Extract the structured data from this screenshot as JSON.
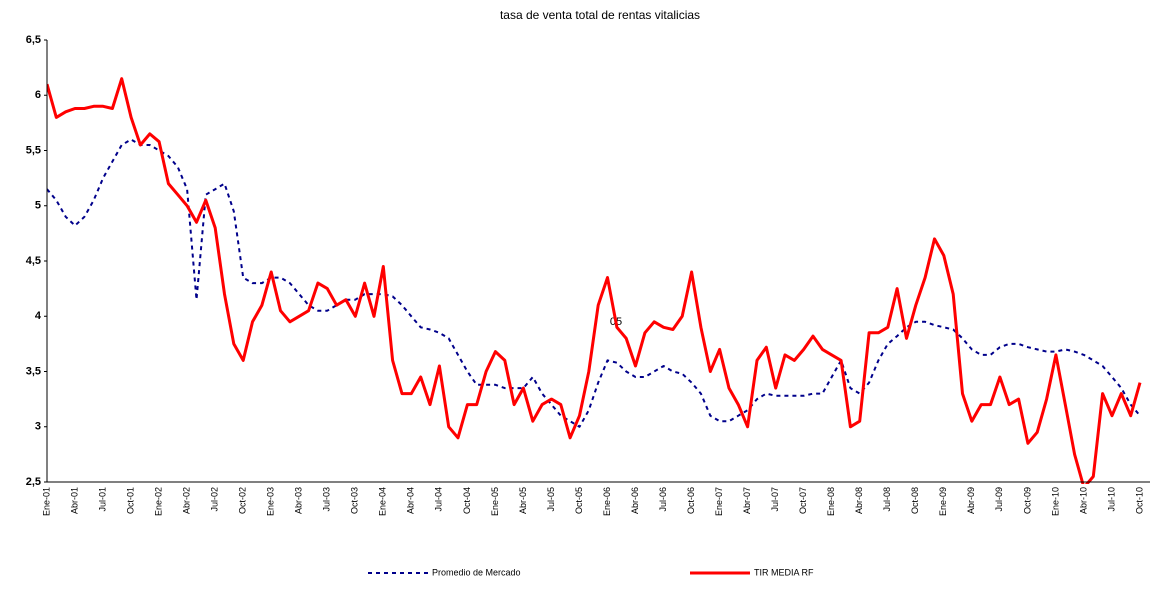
{
  "chart_data": {
    "type": "line",
    "title": "tasa de venta total de rentas vitalicias",
    "annotation": "05",
    "categories": [
      "Ene-01",
      null,
      null,
      "Abr-01",
      null,
      null,
      "Jul-01",
      null,
      null,
      "Oct-01",
      null,
      null,
      "Ene-02",
      null,
      null,
      "Abr-02",
      null,
      null,
      "Jul-02",
      null,
      null,
      "Oct-02",
      null,
      null,
      "Ene-03",
      null,
      null,
      "Abr-03",
      null,
      null,
      "Jul-03",
      null,
      null,
      "Oct-03",
      null,
      null,
      "Ene-04",
      null,
      null,
      "Abr-04",
      null,
      null,
      "Jul-04",
      null,
      null,
      "Oct-04",
      null,
      null,
      "Ene-05",
      null,
      null,
      "Abr-05",
      null,
      null,
      "Jul-05",
      null,
      null,
      "Oct-05",
      null,
      null,
      "Ene-06",
      null,
      null,
      "Abr-06",
      null,
      null,
      "Jul-06",
      null,
      null,
      "Oct-06",
      null,
      null,
      "Ene-07",
      null,
      null,
      "Abr-07",
      null,
      null,
      "Jul-07",
      null,
      null,
      "Oct-07",
      null,
      null,
      "Ene-08",
      null,
      null,
      "Abr-08",
      null,
      null,
      "Jul-08",
      null,
      null,
      "Oct-08",
      null,
      null,
      "Ene-09",
      null,
      null,
      "Abr-09",
      null,
      null,
      "Jul-09",
      null,
      null,
      "Oct-09",
      null,
      null,
      "Ene-10",
      null,
      null,
      "Abr-10",
      null,
      null,
      "Jul-10",
      null,
      null,
      "Oct-10"
    ],
    "series": [
      {
        "name": "Promedio de Mercado",
        "color": "#00008b",
        "dashed": true,
        "values": [
          5.15,
          5.05,
          4.9,
          4.82,
          4.9,
          5.05,
          5.25,
          5.4,
          5.55,
          5.6,
          5.55,
          5.55,
          5.5,
          5.45,
          5.35,
          5.15,
          4.15,
          5.1,
          5.15,
          5.2,
          4.95,
          4.35,
          4.3,
          4.3,
          4.35,
          4.35,
          4.3,
          4.2,
          4.1,
          4.05,
          4.05,
          4.1,
          4.15,
          4.15,
          4.2,
          4.2,
          4.2,
          4.18,
          4.1,
          4.0,
          3.9,
          3.88,
          3.85,
          3.8,
          3.65,
          3.5,
          3.38,
          3.38,
          3.38,
          3.35,
          3.35,
          3.35,
          3.45,
          3.3,
          3.2,
          3.1,
          3.05,
          3.0,
          3.15,
          3.4,
          3.6,
          3.58,
          3.5,
          3.45,
          3.45,
          3.5,
          3.55,
          3.5,
          3.48,
          3.4,
          3.3,
          3.1,
          3.05,
          3.05,
          3.1,
          3.15,
          3.25,
          3.3,
          3.28,
          3.28,
          3.28,
          3.28,
          3.3,
          3.3,
          3.45,
          3.6,
          3.35,
          3.3,
          3.4,
          3.6,
          3.75,
          3.82,
          3.9,
          3.95,
          3.95,
          3.92,
          3.9,
          3.88,
          3.8,
          3.7,
          3.65,
          3.65,
          3.72,
          3.75,
          3.75,
          3.72,
          3.7,
          3.68,
          3.68,
          3.7,
          3.68,
          3.65,
          3.6,
          3.55,
          3.45,
          3.35,
          3.2,
          3.1
        ]
      },
      {
        "name": "TIR MEDIA RF",
        "color": "#ff0000",
        "dashed": false,
        "values": [
          6.1,
          5.8,
          5.85,
          5.88,
          5.88,
          5.9,
          5.9,
          5.88,
          6.15,
          5.8,
          5.55,
          5.65,
          5.58,
          5.2,
          5.1,
          5.0,
          4.85,
          5.05,
          4.8,
          4.2,
          3.75,
          3.6,
          3.95,
          4.1,
          4.4,
          4.05,
          3.95,
          4.0,
          4.05,
          4.3,
          4.25,
          4.1,
          4.15,
          4.0,
          4.3,
          4.0,
          4.45,
          3.6,
          3.3,
          3.3,
          3.45,
          3.2,
          3.55,
          3.0,
          2.9,
          3.2,
          3.2,
          3.5,
          3.68,
          3.6,
          3.2,
          3.35,
          3.05,
          3.2,
          3.25,
          3.2,
          2.9,
          3.1,
          3.5,
          4.1,
          4.35,
          3.9,
          3.8,
          3.55,
          3.85,
          3.95,
          3.9,
          3.88,
          4.0,
          4.4,
          3.9,
          3.5,
          3.7,
          3.35,
          3.2,
          3.0,
          3.6,
          3.72,
          3.35,
          3.65,
          3.6,
          3.7,
          3.82,
          3.7,
          3.65,
          3.6,
          3.0,
          3.05,
          3.85,
          3.85,
          3.9,
          4.25,
          3.8,
          4.1,
          4.35,
          4.7,
          4.55,
          4.2,
          3.3,
          3.05,
          3.2,
          3.2,
          3.45,
          3.2,
          3.25,
          2.85,
          2.95,
          3.25,
          3.65,
          3.2,
          2.75,
          2.45,
          2.55,
          3.3,
          3.1,
          3.3,
          3.1,
          3.4
        ]
      }
    ],
    "ylim": [
      2.5,
      6.5
    ],
    "yticks": [
      {
        "value": 2.5,
        "label": "2,5"
      },
      3,
      {
        "value": 3.5,
        "label": "3,5"
      },
      4,
      {
        "value": 4.5,
        "label": "4,5"
      },
      5,
      {
        "value": 5.5,
        "label": "5,5"
      },
      6,
      {
        "value": 6.5,
        "label": "6,5"
      }
    ],
    "grid": false
  }
}
